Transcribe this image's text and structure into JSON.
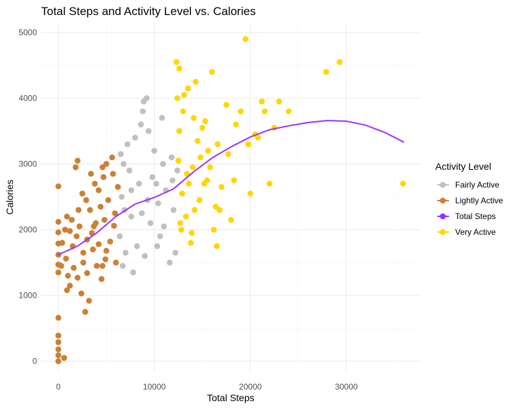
{
  "chart_data": {
    "type": "scatter",
    "title": "Total Steps and Activity Level vs. Calories",
    "xlabel": "Total Steps",
    "ylabel": "Calories",
    "xlim": [
      -1800,
      37700
    ],
    "ylim": [
      -160,
      5160
    ],
    "x_ticks": [
      0,
      10000,
      20000,
      30000
    ],
    "y_ticks": [
      0,
      1000,
      2000,
      3000,
      4000,
      5000
    ],
    "grid": true,
    "legend": {
      "title": "Activity Level",
      "placement": "right",
      "entries": [
        {
          "label": "Fairly Active",
          "color": "#c0c0c0"
        },
        {
          "label": "Lightly Active",
          "color": "#cd7f32"
        },
        {
          "label": "Total Steps",
          "color": "#9b30ff"
        },
        {
          "label": "Very Active",
          "color": "#ffd700"
        }
      ]
    },
    "series": [
      {
        "name": "Lightly Active",
        "color": "#cd7f32",
        "points": [
          [
            0,
            0
          ],
          [
            0,
            90
          ],
          [
            0,
            180
          ],
          [
            0,
            290
          ],
          [
            0,
            390
          ],
          [
            0,
            660
          ],
          [
            0,
            1350
          ],
          [
            0,
            1470
          ],
          [
            0,
            1620
          ],
          [
            0,
            1790
          ],
          [
            0,
            1960
          ],
          [
            0,
            2120
          ],
          [
            0,
            2660
          ],
          [
            600,
            50
          ],
          [
            300,
            1450
          ],
          [
            400,
            1800
          ],
          [
            700,
            2000
          ],
          [
            900,
            2200
          ],
          [
            1200,
            1980
          ],
          [
            1500,
            1750
          ],
          [
            1900,
            1900
          ],
          [
            2200,
            2050
          ],
          [
            2600,
            1650
          ],
          [
            3000,
            1850
          ],
          [
            3500,
            1950
          ],
          [
            3900,
            2100
          ],
          [
            4400,
            2350
          ],
          [
            1800,
            2950
          ],
          [
            2000,
            3050
          ],
          [
            2500,
            2550
          ],
          [
            2900,
            2450
          ],
          [
            3400,
            2850
          ],
          [
            3800,
            2700
          ],
          [
            4200,
            2600
          ],
          [
            4700,
            2800
          ],
          [
            5000,
            3000
          ],
          [
            5600,
            3100
          ],
          [
            2800,
            750
          ],
          [
            3200,
            920
          ],
          [
            2400,
            1030
          ],
          [
            4600,
            1450
          ],
          [
            4900,
            1550
          ],
          [
            4500,
            1250
          ],
          [
            4000,
            1450
          ],
          [
            3600,
            1700
          ],
          [
            5000,
            1680
          ],
          [
            5400,
            1820
          ],
          [
            5800,
            2060
          ],
          [
            5900,
            2250
          ],
          [
            6000,
            1500
          ],
          [
            1200,
            1150
          ],
          [
            1000,
            1300
          ],
          [
            2000,
            1270
          ],
          [
            1600,
            1420
          ],
          [
            3000,
            1340
          ],
          [
            4200,
            1780
          ],
          [
            5200,
            2450
          ],
          [
            4600,
            2950
          ],
          [
            3300,
            2300
          ],
          [
            2100,
            2300
          ],
          [
            1400,
            2150
          ],
          [
            800,
            1560
          ],
          [
            900,
            1080
          ],
          [
            6200,
            2650
          ],
          [
            5700,
            2850
          ],
          [
            3700,
            2050
          ],
          [
            2600,
            1500
          ],
          [
            4800,
            2150
          ]
        ]
      },
      {
        "name": "Fairly Active",
        "color": "#c0c0c0",
        "points": [
          [
            6400,
            1900
          ],
          [
            6600,
            2500
          ],
          [
            6800,
            3000
          ],
          [
            7200,
            3300
          ],
          [
            7600,
            2200
          ],
          [
            8000,
            3400
          ],
          [
            8400,
            2700
          ],
          [
            8800,
            3800
          ],
          [
            9200,
            4000
          ],
          [
            9600,
            2100
          ],
          [
            10000,
            3200
          ],
          [
            10400,
            2400
          ],
          [
            10800,
            3700
          ],
          [
            11200,
            2600
          ],
          [
            11600,
            1500
          ],
          [
            12000,
            2300
          ],
          [
            12400,
            2900
          ],
          [
            8200,
            1750
          ],
          [
            9000,
            1600
          ],
          [
            7000,
            1650
          ],
          [
            6700,
            1450
          ],
          [
            7800,
            1350
          ],
          [
            10600,
            1900
          ],
          [
            11800,
            3100
          ],
          [
            9400,
            3500
          ],
          [
            8600,
            3600
          ],
          [
            7400,
            2900
          ],
          [
            6900,
            2300
          ],
          [
            10200,
            2700
          ],
          [
            11000,
            2050
          ],
          [
            9800,
            2800
          ],
          [
            8700,
            2250
          ],
          [
            7600,
            2600
          ],
          [
            10900,
            3000
          ],
          [
            11900,
            2750
          ],
          [
            12200,
            1650
          ],
          [
            6500,
            3150
          ],
          [
            8900,
            3950
          ],
          [
            10300,
            1750
          ],
          [
            9300,
            2450
          ]
        ]
      },
      {
        "name": "Very Active",
        "color": "#ffd700",
        "points": [
          [
            12300,
            4550
          ],
          [
            12600,
            4450
          ],
          [
            13100,
            4050
          ],
          [
            13500,
            4150
          ],
          [
            14000,
            2950
          ],
          [
            14500,
            3350
          ],
          [
            15000,
            3550
          ],
          [
            15500,
            2750
          ],
          [
            16000,
            4400
          ],
          [
            16500,
            1750
          ],
          [
            17000,
            2650
          ],
          [
            17500,
            3900
          ],
          [
            18000,
            2150
          ],
          [
            18500,
            3600
          ],
          [
            19000,
            3800
          ],
          [
            19500,
            4900
          ],
          [
            20000,
            2550
          ],
          [
            20500,
            3450
          ],
          [
            21500,
            3800
          ],
          [
            22000,
            2700
          ],
          [
            22500,
            3550
          ],
          [
            23000,
            3950
          ],
          [
            24000,
            3800
          ],
          [
            27900,
            4400
          ],
          [
            29300,
            4550
          ],
          [
            35900,
            2700
          ],
          [
            12800,
            2000
          ],
          [
            13800,
            1800
          ],
          [
            14200,
            2300
          ],
          [
            15200,
            2700
          ],
          [
            16200,
            2000
          ],
          [
            12600,
            3500
          ],
          [
            13600,
            2700
          ],
          [
            14800,
            3100
          ],
          [
            15800,
            2950
          ],
          [
            16800,
            2300
          ],
          [
            17700,
            3150
          ],
          [
            12900,
            2550
          ],
          [
            13300,
            2200
          ],
          [
            14100,
            3700
          ],
          [
            15600,
            3200
          ],
          [
            12500,
            3050
          ],
          [
            13900,
            1950
          ],
          [
            14700,
            2450
          ],
          [
            16400,
            2350
          ],
          [
            18300,
            2750
          ],
          [
            19800,
            3300
          ],
          [
            21200,
            3950
          ],
          [
            12400,
            4000
          ],
          [
            13000,
            3800
          ],
          [
            14300,
            4250
          ],
          [
            15300,
            3650
          ],
          [
            12700,
            2100
          ],
          [
            13400,
            2850
          ],
          [
            20800,
            3400
          ],
          [
            16600,
            3300
          ]
        ]
      }
    ],
    "trend_line": {
      "name": "Total Steps",
      "color": "#9b30ff",
      "points": [
        [
          0,
          1620
        ],
        [
          2000,
          1750
        ],
        [
          4000,
          1950
        ],
        [
          6000,
          2200
        ],
        [
          8000,
          2390
        ],
        [
          10000,
          2490
        ],
        [
          12000,
          2620
        ],
        [
          14000,
          2870
        ],
        [
          16000,
          3090
        ],
        [
          18000,
          3260
        ],
        [
          20000,
          3410
        ],
        [
          22000,
          3520
        ],
        [
          24000,
          3580
        ],
        [
          26000,
          3630
        ],
        [
          28000,
          3660
        ],
        [
          30000,
          3650
        ],
        [
          32000,
          3590
        ],
        [
          34000,
          3480
        ],
        [
          36000,
          3330
        ]
      ]
    }
  }
}
